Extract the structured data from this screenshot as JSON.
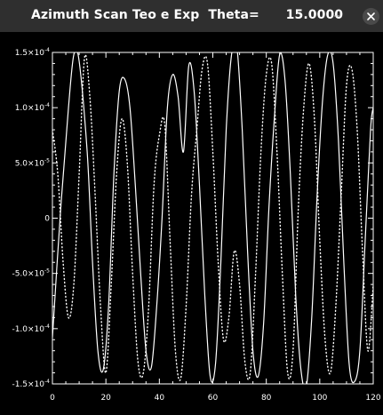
{
  "window": {
    "title": "Azimuth Scan Teo e Exp  Theta=      15.0000",
    "minimize_icon": "minimize-icon",
    "close_icon": "close-icon"
  },
  "colors": {
    "background": "#000000",
    "titlebar": "#2f2f2f",
    "foreground": "#ffffff"
  },
  "chart_data": {
    "type": "line",
    "title": "",
    "xlabel": "",
    "ylabel": "",
    "xlim": [
      0,
      120
    ],
    "ylim": [
      -0.00015,
      0.00015
    ],
    "x_ticks": [
      0,
      20,
      40,
      60,
      80,
      100,
      120
    ],
    "x_tick_labels": [
      "0",
      "20",
      "40",
      "60",
      "80",
      "100",
      "120"
    ],
    "y_ticks": [
      -0.00015,
      -0.0001,
      -5e-05,
      0,
      5e-05,
      0.0001,
      0.00015
    ],
    "y_tick_labels": [
      {
        "mantissa": "-1.5×10",
        "exp": "-4"
      },
      {
        "mantissa": "-1.0×10",
        "exp": "-4"
      },
      {
        "mantissa": "-5.0×10",
        "exp": "-5"
      },
      {
        "mantissa": "0",
        "exp": ""
      },
      {
        "mantissa": "5.0×10",
        "exp": "-5"
      },
      {
        "mantissa": "1.0×10",
        "exp": "-4"
      },
      {
        "mantissa": "1.5×10",
        "exp": "-4"
      }
    ],
    "grid": false,
    "series": [
      {
        "style": "solid",
        "x": [
          0,
          3,
          6,
          8,
          10,
          13,
          15,
          17,
          19,
          21,
          23,
          25,
          27,
          29,
          31,
          33,
          35,
          37,
          39,
          41,
          43,
          45,
          47,
          49,
          51,
          53,
          55,
          57,
          59,
          61,
          63,
          65,
          67,
          69,
          71,
          73,
          75,
          77,
          79,
          81,
          83,
          85,
          87,
          89,
          91,
          93,
          95,
          97,
          99,
          101,
          103,
          105,
          107,
          109,
          111,
          113,
          115,
          117,
          119,
          120
        ],
        "y": [
          -0.000108,
          5e-06,
          0.0001,
          0.000148,
          0.000142,
          6e-05,
          -4e-05,
          -0.00012,
          -0.000137,
          -8e-05,
          4e-05,
          0.000115,
          0.000126,
          0.0001,
          3e-05,
          -5e-05,
          -0.00012,
          -0.000135,
          -8e-05,
          0,
          0.0001,
          0.00013,
          0.00011,
          6e-05,
          0.000138,
          0.000115,
          3e-05,
          -7e-05,
          -0.000143,
          -0.000132,
          -4e-05,
          8e-05,
          0.000148,
          0.000155,
          8e-05,
          -3e-05,
          -0.00012,
          -0.000143,
          -9.5e-05,
          1e-05,
          9e-05,
          0.000148,
          0.000125,
          4e-05,
          -7e-05,
          -0.000138,
          -0.000152,
          -9e-05,
          2e-05,
          0.000105,
          0.000148,
          0.00014,
          7e-05,
          -4e-05,
          -0.000132,
          -0.000148,
          -0.00012,
          -2e-05,
          8e-05,
          0.0001
        ]
      },
      {
        "style": "dotted",
        "x": [
          0,
          2,
          4,
          6,
          8,
          10,
          12,
          14,
          16,
          18,
          20,
          22,
          24,
          26,
          28,
          30,
          32,
          34,
          36,
          38,
          40,
          42,
          44,
          46,
          48,
          50,
          52,
          54,
          56,
          58,
          60,
          62,
          64,
          66,
          68,
          70,
          72,
          74,
          76,
          78,
          80,
          82,
          84,
          86,
          88,
          90,
          92,
          94,
          96,
          98,
          100,
          102,
          104,
          106,
          108,
          110,
          112,
          114,
          116,
          118,
          120
        ],
        "y": [
          8e-05,
          4e-05,
          -4e-05,
          -9e-05,
          -6e-05,
          4e-05,
          0.000145,
          0.00011,
          2e-05,
          -8e-05,
          -0.00014,
          -6e-05,
          4e-05,
          9e-05,
          5e-05,
          -5e-05,
          -0.00013,
          -0.00014,
          -8e-05,
          3e-05,
          7.5e-05,
          8.5e-05,
          -2e-05,
          -0.00012,
          -0.000145,
          -8e-05,
          2e-05,
          8e-05,
          0.000135,
          0.00014,
          6e-05,
          -4e-05,
          -0.00011,
          -9e-05,
          -3e-05,
          -6e-05,
          -0.00013,
          -0.00014,
          -5e-05,
          6e-05,
          0.00013,
          0.00014,
          6e-05,
          -5e-05,
          -0.00014,
          -0.00012,
          1e-05,
          0.0001,
          0.00014,
          9e-05,
          -2e-05,
          -0.00011,
          -0.00014,
          -8e-05,
          2e-05,
          0.00012,
          0.000135,
          8e-05,
          -3e-05,
          -0.00012,
          -6e-05
        ]
      }
    ]
  }
}
